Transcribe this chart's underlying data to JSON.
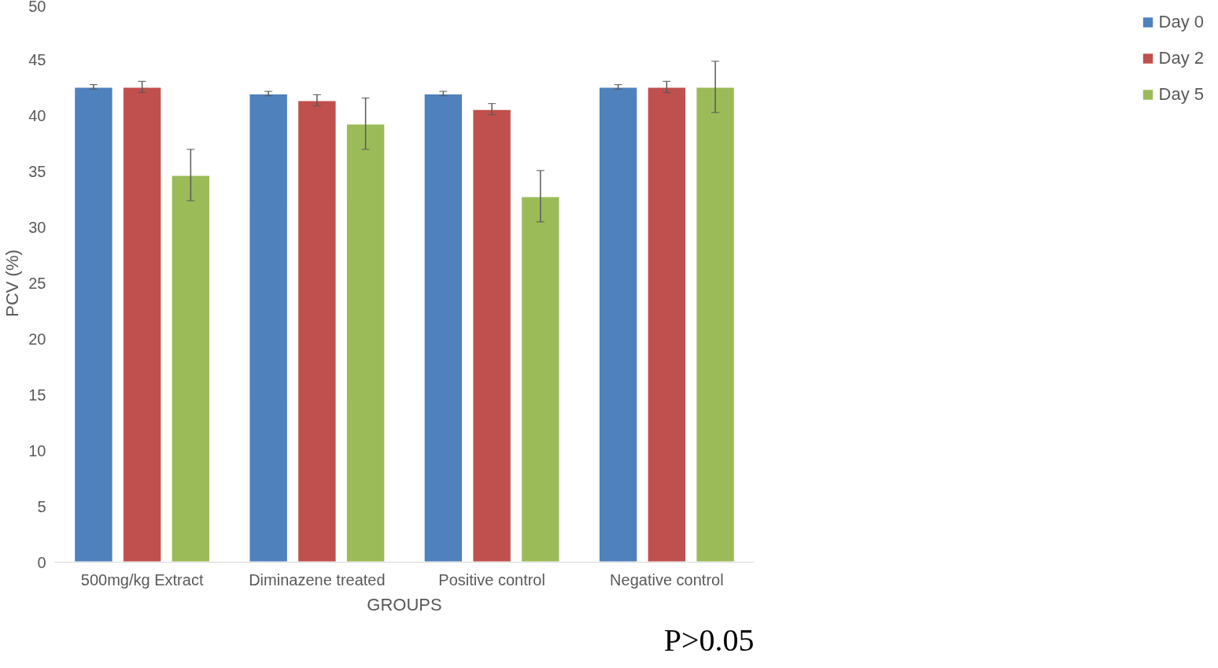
{
  "chart_data": {
    "type": "bar",
    "xlabel": "GROUPS",
    "ylabel": "PCV (%)",
    "categories": [
      "500mg/kg Extract",
      "Diminazene treated",
      "Positive control",
      "Negative control"
    ],
    "series": [
      {
        "name": "Day 0",
        "color": "#4f81bd",
        "values": [
          42.6,
          42.0,
          42.0,
          42.6
        ],
        "errors": [
          0.2,
          0.2,
          0.2,
          0.2
        ]
      },
      {
        "name": "Day 2",
        "color": "#c0504d",
        "values": [
          42.6,
          41.4,
          40.6,
          42.6
        ],
        "errors": [
          0.5,
          0.5,
          0.5,
          0.5
        ]
      },
      {
        "name": "Day 5",
        "color": "#9bbb59",
        "values": [
          34.7,
          39.3,
          32.8,
          42.6
        ],
        "errors": [
          2.3,
          2.3,
          2.3,
          2.3
        ]
      }
    ],
    "ylim": [
      0,
      50
    ],
    "yticks": [
      0,
      5,
      10,
      15,
      20,
      25,
      30,
      35,
      40,
      45,
      50
    ],
    "grid": false,
    "legend": "right",
    "annotations": [
      "P>0.05"
    ]
  }
}
